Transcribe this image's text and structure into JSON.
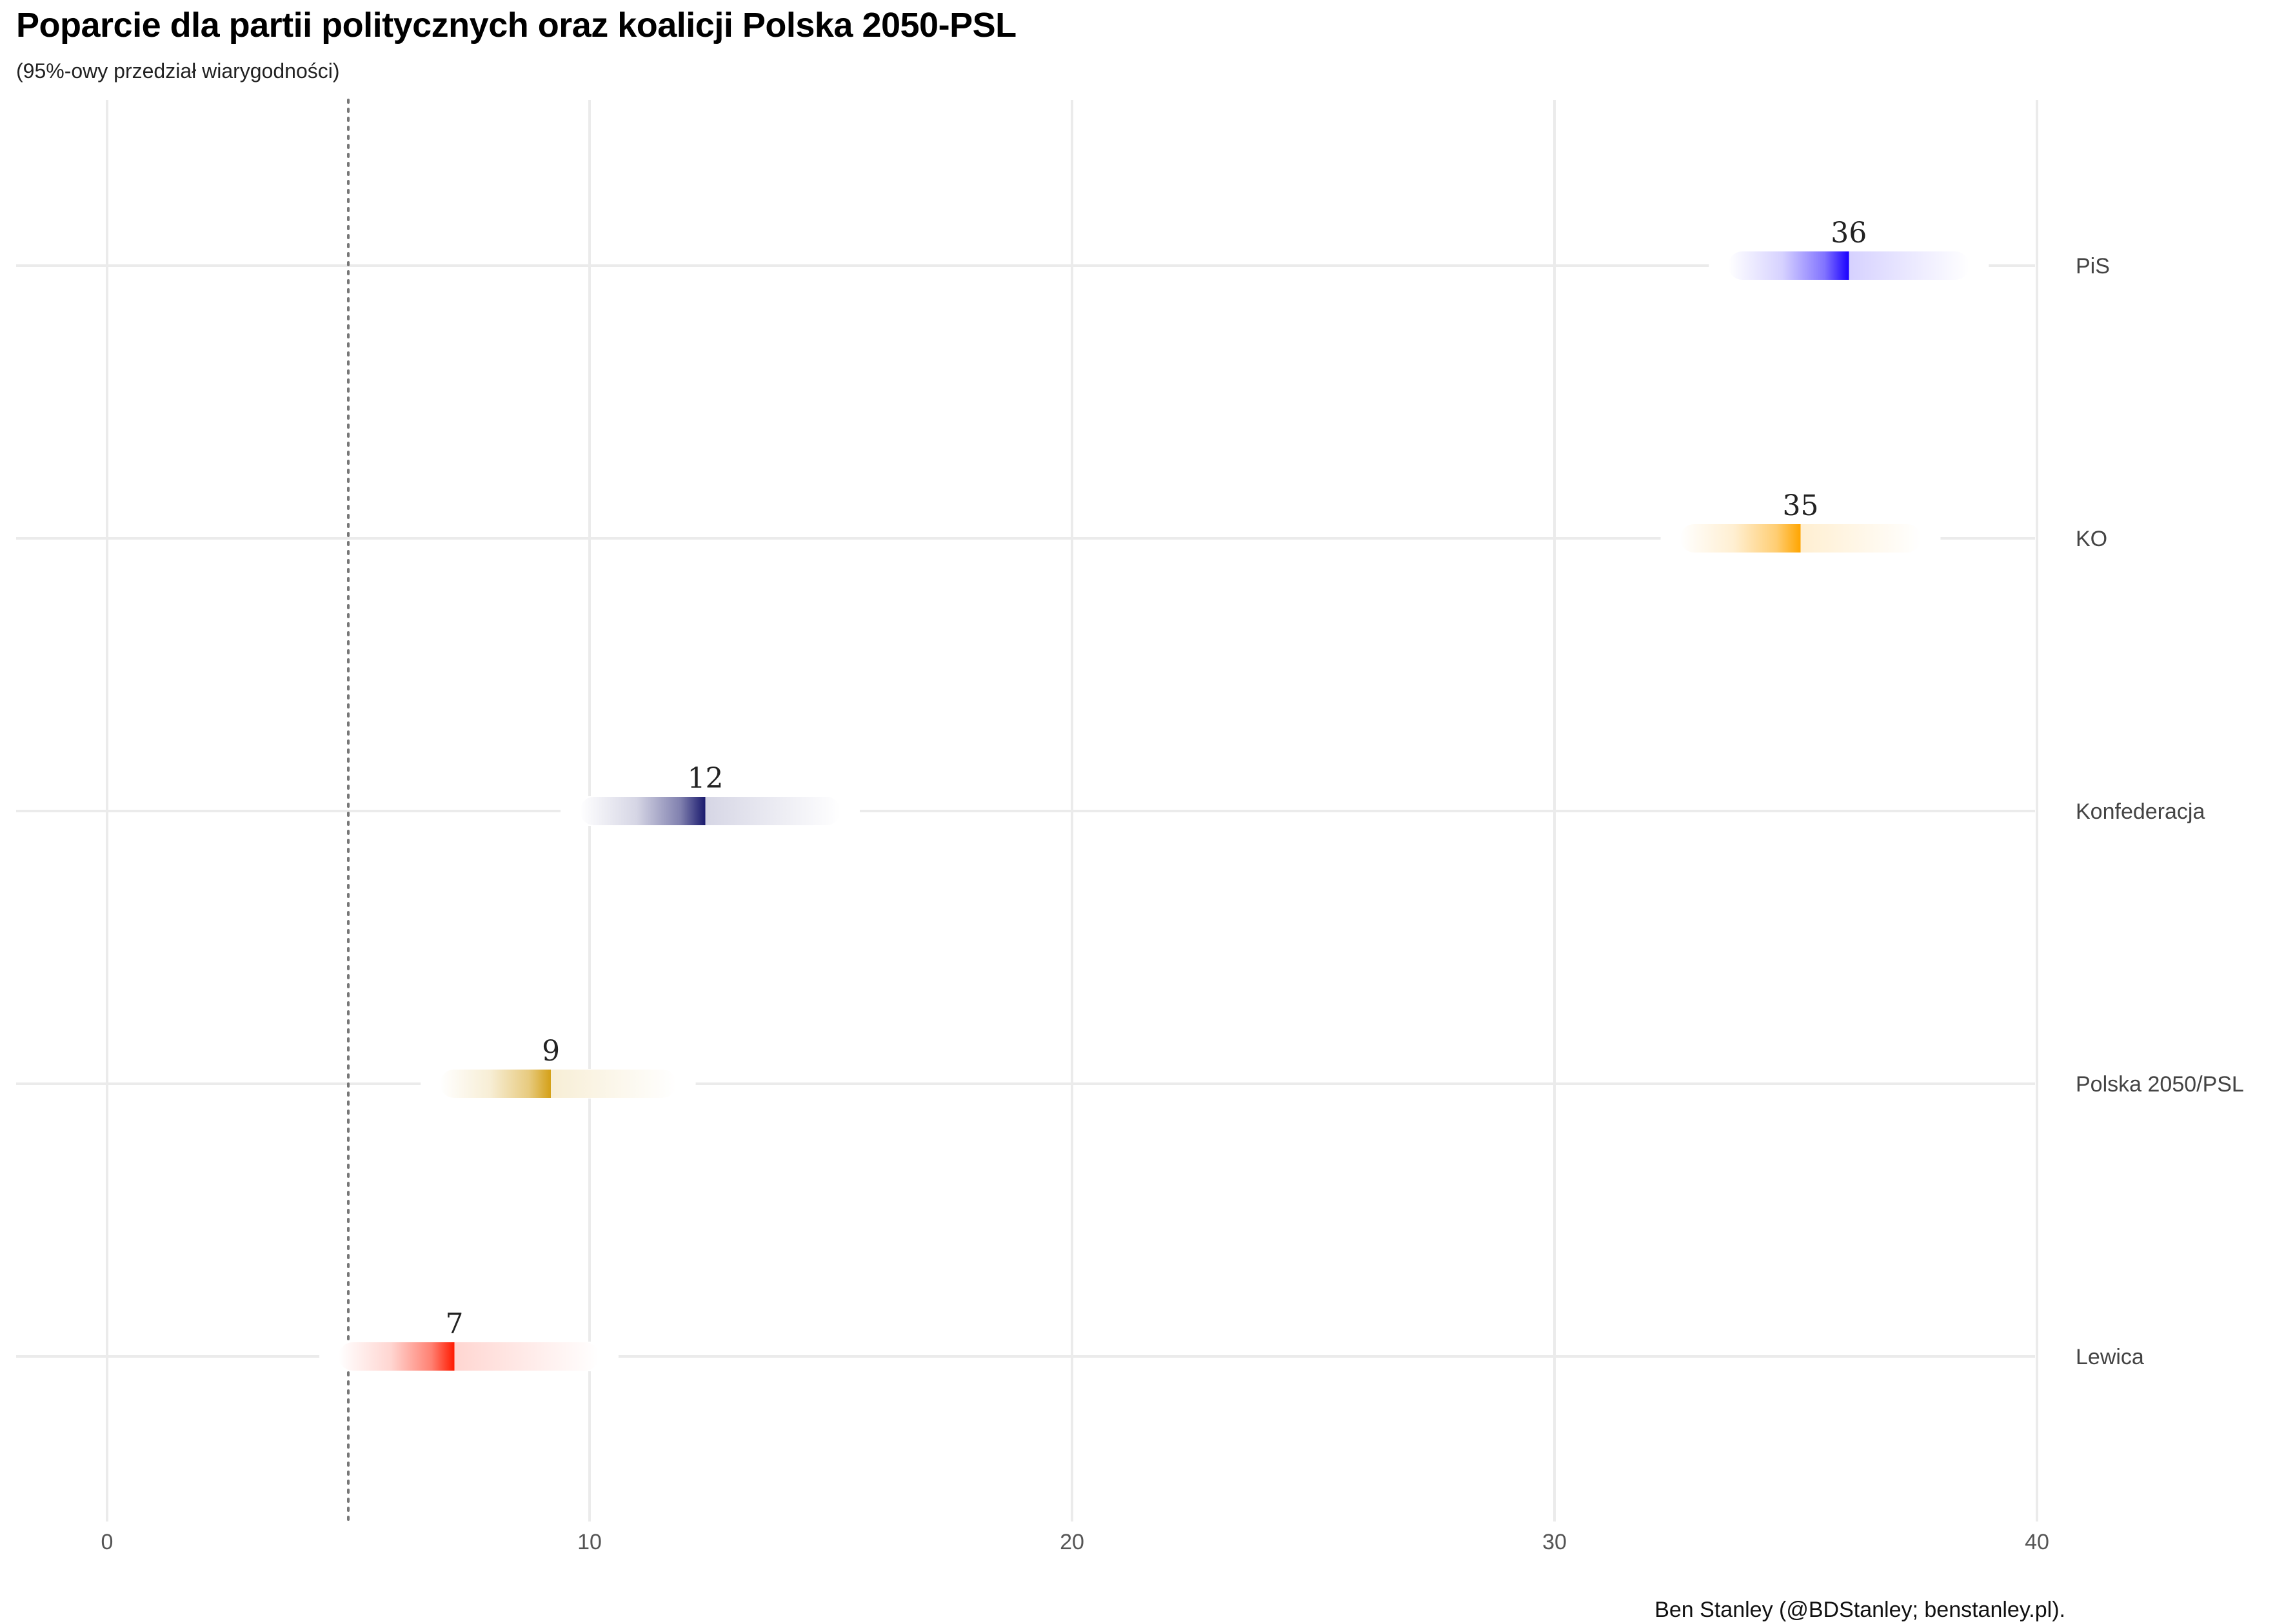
{
  "chart_data": {
    "type": "interval",
    "title": "Poparcie dla partii politycznych oraz koalicji Polska 2050-PSL",
    "subtitle": "(95%-owy przedział wiarygodności)",
    "caption": "Ben Stanley (@BDStanley; benstanley.pl).",
    "xlim": [
      0,
      40
    ],
    "xticks": [
      0,
      10,
      20,
      30,
      40
    ],
    "threshold": 5,
    "grid": true,
    "series": [
      {
        "party": "PiS",
        "value": 36,
        "median": 36.1,
        "lower": 33.6,
        "upper": 38.6,
        "color": "#1a00ff"
      },
      {
        "party": "KO",
        "value": 35,
        "median": 35.1,
        "lower": 32.6,
        "upper": 37.6,
        "color": "#ffa500"
      },
      {
        "party": "Konfederacja",
        "value": 12,
        "median": 12.4,
        "lower": 9.8,
        "upper": 15.2,
        "color": "#1a1a6e"
      },
      {
        "party": "Polska 2050/PSL",
        "value": 9,
        "median": 9.2,
        "lower": 6.9,
        "upper": 11.8,
        "color": "#d4a017"
      },
      {
        "party": "Lewica",
        "value": 7,
        "median": 7.2,
        "lower": 4.8,
        "upper": 10.2,
        "color": "#ff1a00"
      }
    ]
  }
}
